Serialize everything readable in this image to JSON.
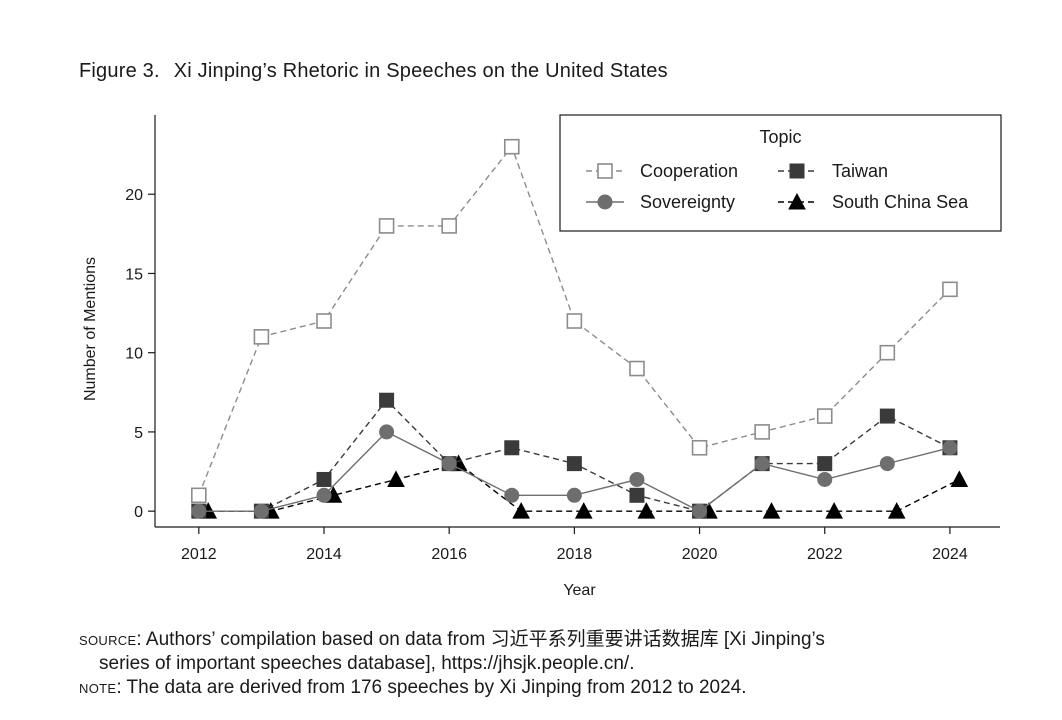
{
  "figure": {
    "number": "Figure 3.",
    "title": "Xi Jinping’s Rhetoric in Speeches on the United States"
  },
  "chart_data": {
    "type": "line",
    "title": "Figure 3. Xi Jinping’s Rhetoric in Speeches on the United States",
    "xlabel": "Year",
    "ylabel": "Number of Mentions",
    "xlim": [
      2011.3,
      2024.8
    ],
    "ylim": [
      -1,
      25
    ],
    "xticks": [
      2012,
      2014,
      2016,
      2018,
      2020,
      2022,
      2024
    ],
    "yticks": [
      0,
      5,
      10,
      15,
      20
    ],
    "grid": false,
    "legend": {
      "title": "Topic",
      "placement": "top-right"
    },
    "x": [
      2012,
      2013,
      2014,
      2015,
      2016,
      2017,
      2018,
      2019,
      2020,
      2021,
      2022,
      2023,
      2024
    ],
    "series": [
      {
        "name": "Cooperation",
        "marker": "hollow-square",
        "line": "dashed",
        "color": "#8c8c8c",
        "values": [
          1,
          11,
          12,
          18,
          18,
          23,
          12,
          9,
          4,
          5,
          6,
          10,
          14
        ]
      },
      {
        "name": "Sovereignty",
        "marker": "circle",
        "line": "solid",
        "color": "#6e6e6e",
        "values": [
          0,
          0,
          1,
          5,
          3,
          1,
          1,
          2,
          0,
          3,
          2,
          3,
          4
        ]
      },
      {
        "name": "Taiwan",
        "marker": "filled-square",
        "line": "dashed",
        "color": "#3a3a3a",
        "values": [
          0,
          0,
          2,
          7,
          3,
          4,
          3,
          1,
          0,
          3,
          3,
          6,
          4
        ]
      },
      {
        "name": "South China Sea",
        "marker": "triangle",
        "line": "dashed",
        "color": "#000000",
        "values": [
          0,
          0,
          1,
          2,
          3,
          0,
          0,
          0,
          0,
          0,
          0,
          0,
          2
        ]
      }
    ]
  },
  "notes": {
    "source_label": "source",
    "source_text": ": Authors’ compilation based on data from 习近平系列重要讲话数据库 [Xi Jinping’s",
    "source_text_2": "series of important speeches database], https://jhsjk.people.cn/.",
    "note_label": "note",
    "note_text": ": The data are derived from 176 speeches by Xi Jinping from 2012 to 2024."
  }
}
